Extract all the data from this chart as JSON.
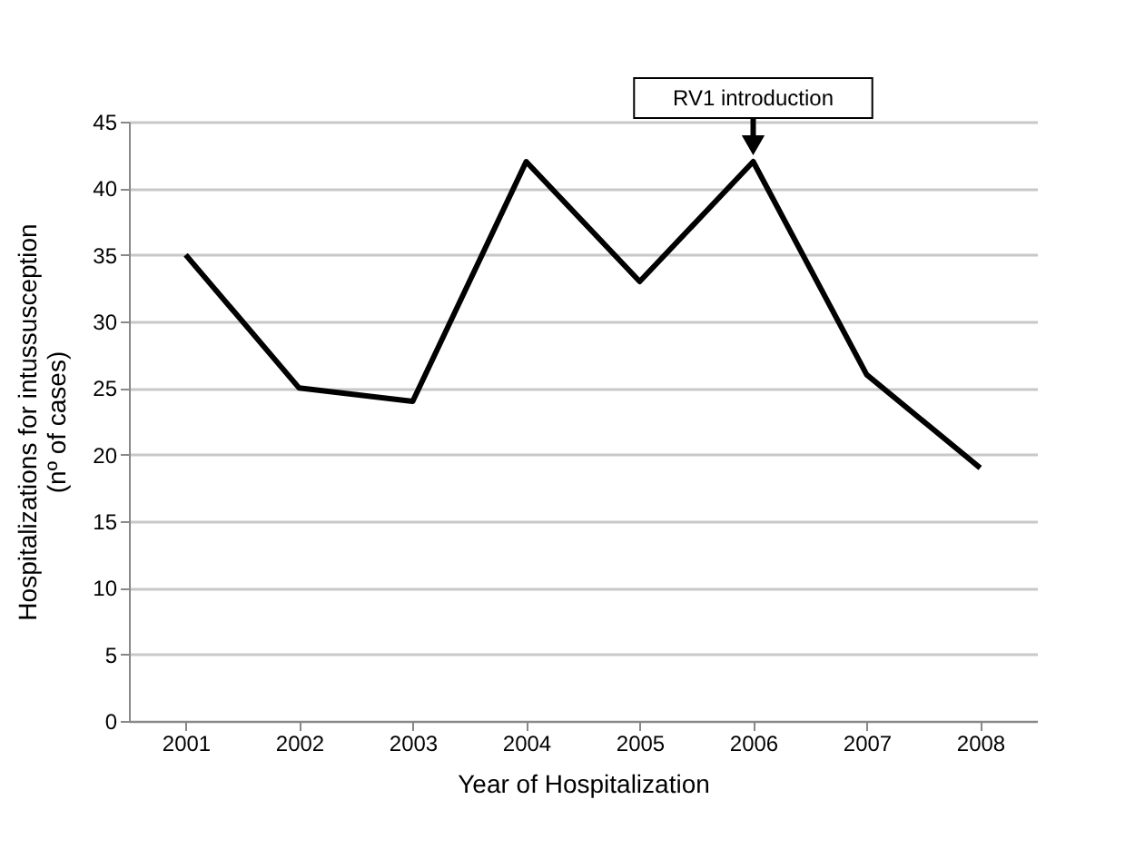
{
  "chart_data": {
    "type": "line",
    "xlabel": "Year of Hospitalization",
    "ylabel": "Hospitalizations for intussusception (nº of cases)",
    "categories": [
      "2001",
      "2002",
      "2003",
      "2004",
      "2005",
      "2006",
      "2007",
      "2008"
    ],
    "series": [
      {
        "color": "#000000",
        "values": [
          35,
          25,
          24,
          42,
          33,
          42,
          26,
          19
        ]
      }
    ],
    "ylim": [
      0,
      45
    ],
    "yticks": [
      0,
      5,
      10,
      15,
      20,
      25,
      30,
      35,
      40,
      45
    ],
    "grid": "y",
    "marker": "none",
    "line_style": "solid",
    "annotations": [
      {
        "text": "RV1 introduction",
        "x": "2006",
        "y": 42
      }
    ]
  }
}
